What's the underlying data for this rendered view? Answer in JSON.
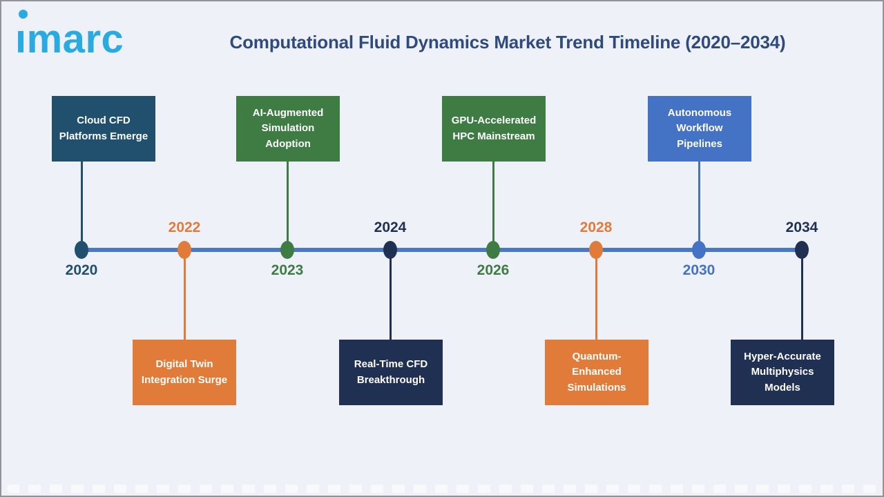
{
  "page": {
    "background": "#EEF1F7"
  },
  "header": {
    "logo_text": "imarc",
    "logo_color": "#29ABE2",
    "title": "Computational Fluid Dynamics Market Trend Timeline (2020–2034)",
    "title_color": "#2F4A7C"
  },
  "timeline": {
    "axis_color": "#4878C8",
    "events": [
      {
        "year": "2020",
        "title": "Cloud CFD Platforms Emerge",
        "side": "top",
        "color": "#20506E"
      },
      {
        "year": "2022",
        "title": "Digital Twin Integration Surge",
        "side": "bottom",
        "color": "#E07B39"
      },
      {
        "year": "2023",
        "title": "AI-Augmented Simulation Adoption",
        "side": "top",
        "color": "#3E7C44"
      },
      {
        "year": "2024",
        "title": "Real-Time CFD Breakthrough",
        "side": "bottom",
        "color": "#1F3052"
      },
      {
        "year": "2026",
        "title": "GPU-Accelerated HPC Mainstream",
        "side": "top",
        "color": "#3E7C44"
      },
      {
        "year": "2028",
        "title": "Quantum-Enhanced Simulations",
        "side": "bottom",
        "color": "#E07B39"
      },
      {
        "year": "2030",
        "title": "Autonomous Workflow Pipelines",
        "side": "top",
        "color": "#4472C4"
      },
      {
        "year": "2034",
        "title": "Hyper-Accurate Multiphysics Models",
        "side": "bottom",
        "color": "#1F3052"
      }
    ]
  }
}
